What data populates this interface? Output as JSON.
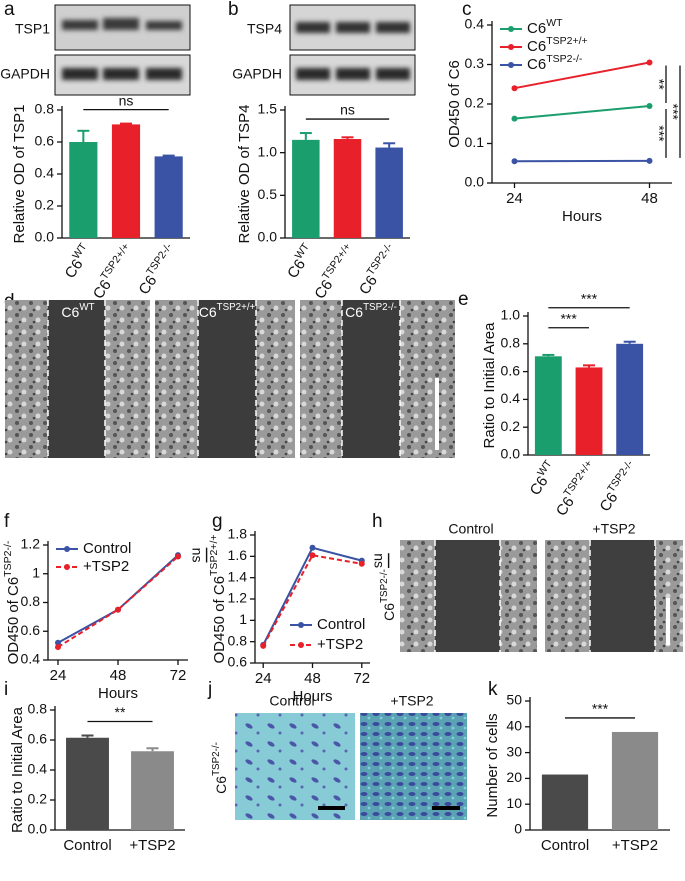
{
  "figure_images": {
    "a": {
      "panel_label": "a",
      "bands": [
        "TSP1",
        "GAPDH"
      ]
    },
    "b": {
      "panel_label": "b",
      "bands": [
        "TSP4",
        "GAPDH"
      ]
    },
    "d": {
      "panel_label": "d",
      "columns": [
        [
          "C6",
          "WT"
        ],
        [
          "C6",
          "TSP2+/+"
        ],
        [
          "C6",
          "TSP2-/-"
        ]
      ]
    },
    "h": {
      "panel_label": "h",
      "columns": [
        "Control",
        "+TSP2"
      ],
      "row_label": [
        "C6",
        "TSP2-/-"
      ]
    },
    "j": {
      "panel_label": "j",
      "columns": [
        "Control",
        "+TSP2"
      ],
      "row_label": [
        "C6",
        "TSP2-/-"
      ]
    }
  },
  "chart_data": [
    {
      "type": "bar",
      "y_label": "Relative OD of TSP1",
      "categories": [
        [
          "C6",
          "WT"
        ],
        [
          "C6",
          "TSP2+/+"
        ],
        [
          "C6",
          "TSP2-/-"
        ]
      ],
      "values": [
        0.6,
        0.71,
        0.51
      ],
      "errors": [
        0.07,
        0.005,
        0.005
      ],
      "colors": [
        "#1a9e6e",
        "#e8202a",
        "#3a53a4"
      ],
      "ylim": [
        0,
        0.8
      ],
      "yticks": [
        {
          "value": 0,
          "label": "0.0"
        },
        0.2,
        0.4,
        0.6,
        0.8
      ],
      "annotations": [
        "ns"
      ]
    },
    {
      "type": "bar",
      "y_label": "Relative OD of TSP4",
      "categories": [
        [
          "C6",
          "WT"
        ],
        [
          "C6",
          "TSP2+/+"
        ],
        [
          "C6",
          "TSP2-/-"
        ]
      ],
      "values": [
        1.15,
        1.16,
        1.06
      ],
      "errors": [
        0.08,
        0.02,
        0.05
      ],
      "colors": [
        "#1a9e6e",
        "#e8202a",
        "#3a53a4"
      ],
      "ylim": [
        0,
        1.5
      ],
      "yticks": [
        {
          "value": 0,
          "label": "0.0"
        },
        0.5,
        {
          "value": 1,
          "label": "1.0"
        },
        1.5
      ],
      "annotations": [
        "ns"
      ]
    },
    {
      "type": "line",
      "panel_label": "c",
      "y_label": "OD450 of C6",
      "x_label": "Hours",
      "x": [
        24,
        48
      ],
      "xlim": [
        20,
        52
      ],
      "xticks": [
        24,
        48
      ],
      "ylim": [
        0,
        0.4
      ],
      "yticks": [
        {
          "value": 0,
          "label": "0.0"
        },
        0.1,
        0.2,
        0.3,
        0.4
      ],
      "legend": "upper left",
      "series": [
        {
          "name": [
            "C6",
            "WT"
          ],
          "color": "#1a9e6e",
          "line_style": "solid",
          "values": [
            0.163,
            0.195
          ]
        },
        {
          "name": [
            "C6",
            "TSP2+/+"
          ],
          "color": "#e8202a",
          "line_style": "solid",
          "values": [
            0.24,
            0.305
          ]
        },
        {
          "name": [
            "C6",
            "TSP2-/-"
          ],
          "color": "#3a53a4",
          "line_style": "solid",
          "values": [
            0.055,
            0.056
          ]
        }
      ],
      "annotations": [
        "**",
        "***",
        "***"
      ]
    },
    {
      "type": "bar",
      "panel_label": "e",
      "y_label": "Ratio to Initial Area",
      "categories": [
        [
          "C6",
          "WT"
        ],
        [
          "C6",
          "TSP2+/+"
        ],
        [
          "C6",
          "TSP2-/-"
        ]
      ],
      "values": [
        0.71,
        0.63,
        0.8
      ],
      "errors": [
        0.01,
        0.015,
        0.015
      ],
      "colors": [
        "#1a9e6e",
        "#e8202a",
        "#3a53a4"
      ],
      "ylim": [
        0,
        1
      ],
      "yticks": [
        {
          "value": 0,
          "label": "0.0"
        },
        0.2,
        0.4,
        0.6,
        0.8,
        {
          "value": 1,
          "label": "1.0"
        }
      ],
      "annotations": [
        "***",
        "***"
      ]
    },
    {
      "type": "line",
      "panel_label": "f",
      "y_label": [
        "OD450 of C6",
        "TSP2-/-"
      ],
      "x_label": "Hours",
      "x": [
        24,
        48,
        72
      ],
      "xlim": [
        20,
        76
      ],
      "xticks": [
        24,
        48,
        72
      ],
      "ylim": [
        0.4,
        1.2
      ],
      "yticks": [
        0.4,
        0.6,
        0.8,
        1,
        1.2
      ],
      "legend": "upper left",
      "series": [
        {
          "name": "Control",
          "color": "#3a53a4",
          "line_style": "solid",
          "values": [
            0.52,
            0.75,
            1.13
          ]
        },
        {
          "name": "+TSP2",
          "color": "#e8202a",
          "line_style": "dashed",
          "values": [
            0.49,
            0.75,
            1.12
          ]
        }
      ],
      "annotations": [
        "ns"
      ]
    },
    {
      "type": "line",
      "panel_label": "g",
      "y_label": [
        "OD450 of C6",
        "TSP2+/+"
      ],
      "x_label": "Hours",
      "x": [
        24,
        48,
        72
      ],
      "xlim": [
        20,
        76
      ],
      "xticks": [
        24,
        48,
        72
      ],
      "ylim": [
        0.6,
        1.8
      ],
      "yticks": [
        0.6,
        0.8,
        1,
        1.2,
        1.4,
        1.6,
        1.8
      ],
      "legend": "lower right",
      "series": [
        {
          "name": "Control",
          "color": "#3a53a4",
          "line_style": "solid",
          "values": [
            0.77,
            1.68,
            1.56
          ]
        },
        {
          "name": "+TSP2",
          "color": "#e8202a",
          "line_style": "dashed",
          "values": [
            0.76,
            1.61,
            1.53
          ]
        }
      ],
      "annotations": [
        "ns"
      ]
    },
    {
      "type": "bar",
      "panel_label": "i",
      "y_label": "Ratio to Initial Area",
      "categories": [
        "Control",
        "+TSP2"
      ],
      "values": [
        0.615,
        0.525
      ],
      "errors": [
        0.015,
        0.02
      ],
      "colors": [
        "#4a4a4a",
        "#8a8a8a"
      ],
      "ylim": [
        0,
        0.8
      ],
      "yticks": [
        {
          "value": 0,
          "label": "0.0"
        },
        0.2,
        0.4,
        0.6,
        0.8
      ],
      "annotations": [
        "**"
      ]
    },
    {
      "type": "bar",
      "panel_label": "k",
      "y_label": "Number of cells",
      "categories": [
        "Control",
        "+TSP2"
      ],
      "values": [
        21.5,
        38
      ],
      "colors": [
        "#4a4a4a",
        "#8a8a8a"
      ],
      "ylim": [
        0,
        50
      ],
      "yticks": [
        0,
        10,
        20,
        30,
        40,
        50
      ],
      "annotations": [
        "***"
      ]
    }
  ]
}
